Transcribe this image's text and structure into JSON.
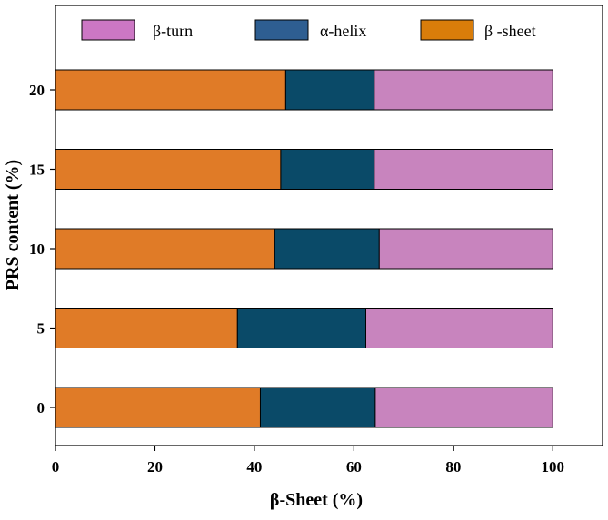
{
  "chart_data": {
    "type": "bar",
    "orientation": "horizontal",
    "stacked": true,
    "title": "",
    "xlabel": "β-Sheet (%)",
    "ylabel": "PRS content (%)",
    "xlim": [
      0,
      110
    ],
    "x_ticks": [
      0,
      20,
      40,
      60,
      80,
      100
    ],
    "categories": [
      "0",
      "5",
      "10",
      "15",
      "20"
    ],
    "series": [
      {
        "name": "β -sheet",
        "color": "#E07B27",
        "values": [
          41.2,
          36.6,
          44.1,
          45.3,
          46.3
        ]
      },
      {
        "name": "α-helix",
        "color": "#0A4A68",
        "values": [
          23.1,
          25.8,
          21.0,
          18.8,
          17.8
        ]
      },
      {
        "name": "β-turn",
        "color": "#C884BE",
        "values": [
          35.7,
          37.6,
          34.9,
          35.9,
          35.9
        ]
      }
    ],
    "legend": {
      "placement": "top",
      "entries": [
        {
          "label": "β-turn",
          "color": "#CC77C4"
        },
        {
          "label": "α-helix",
          "color": "#2E5E91"
        },
        {
          "label": "β -sheet",
          "color": "#D97D0A"
        }
      ]
    },
    "grid": false
  }
}
